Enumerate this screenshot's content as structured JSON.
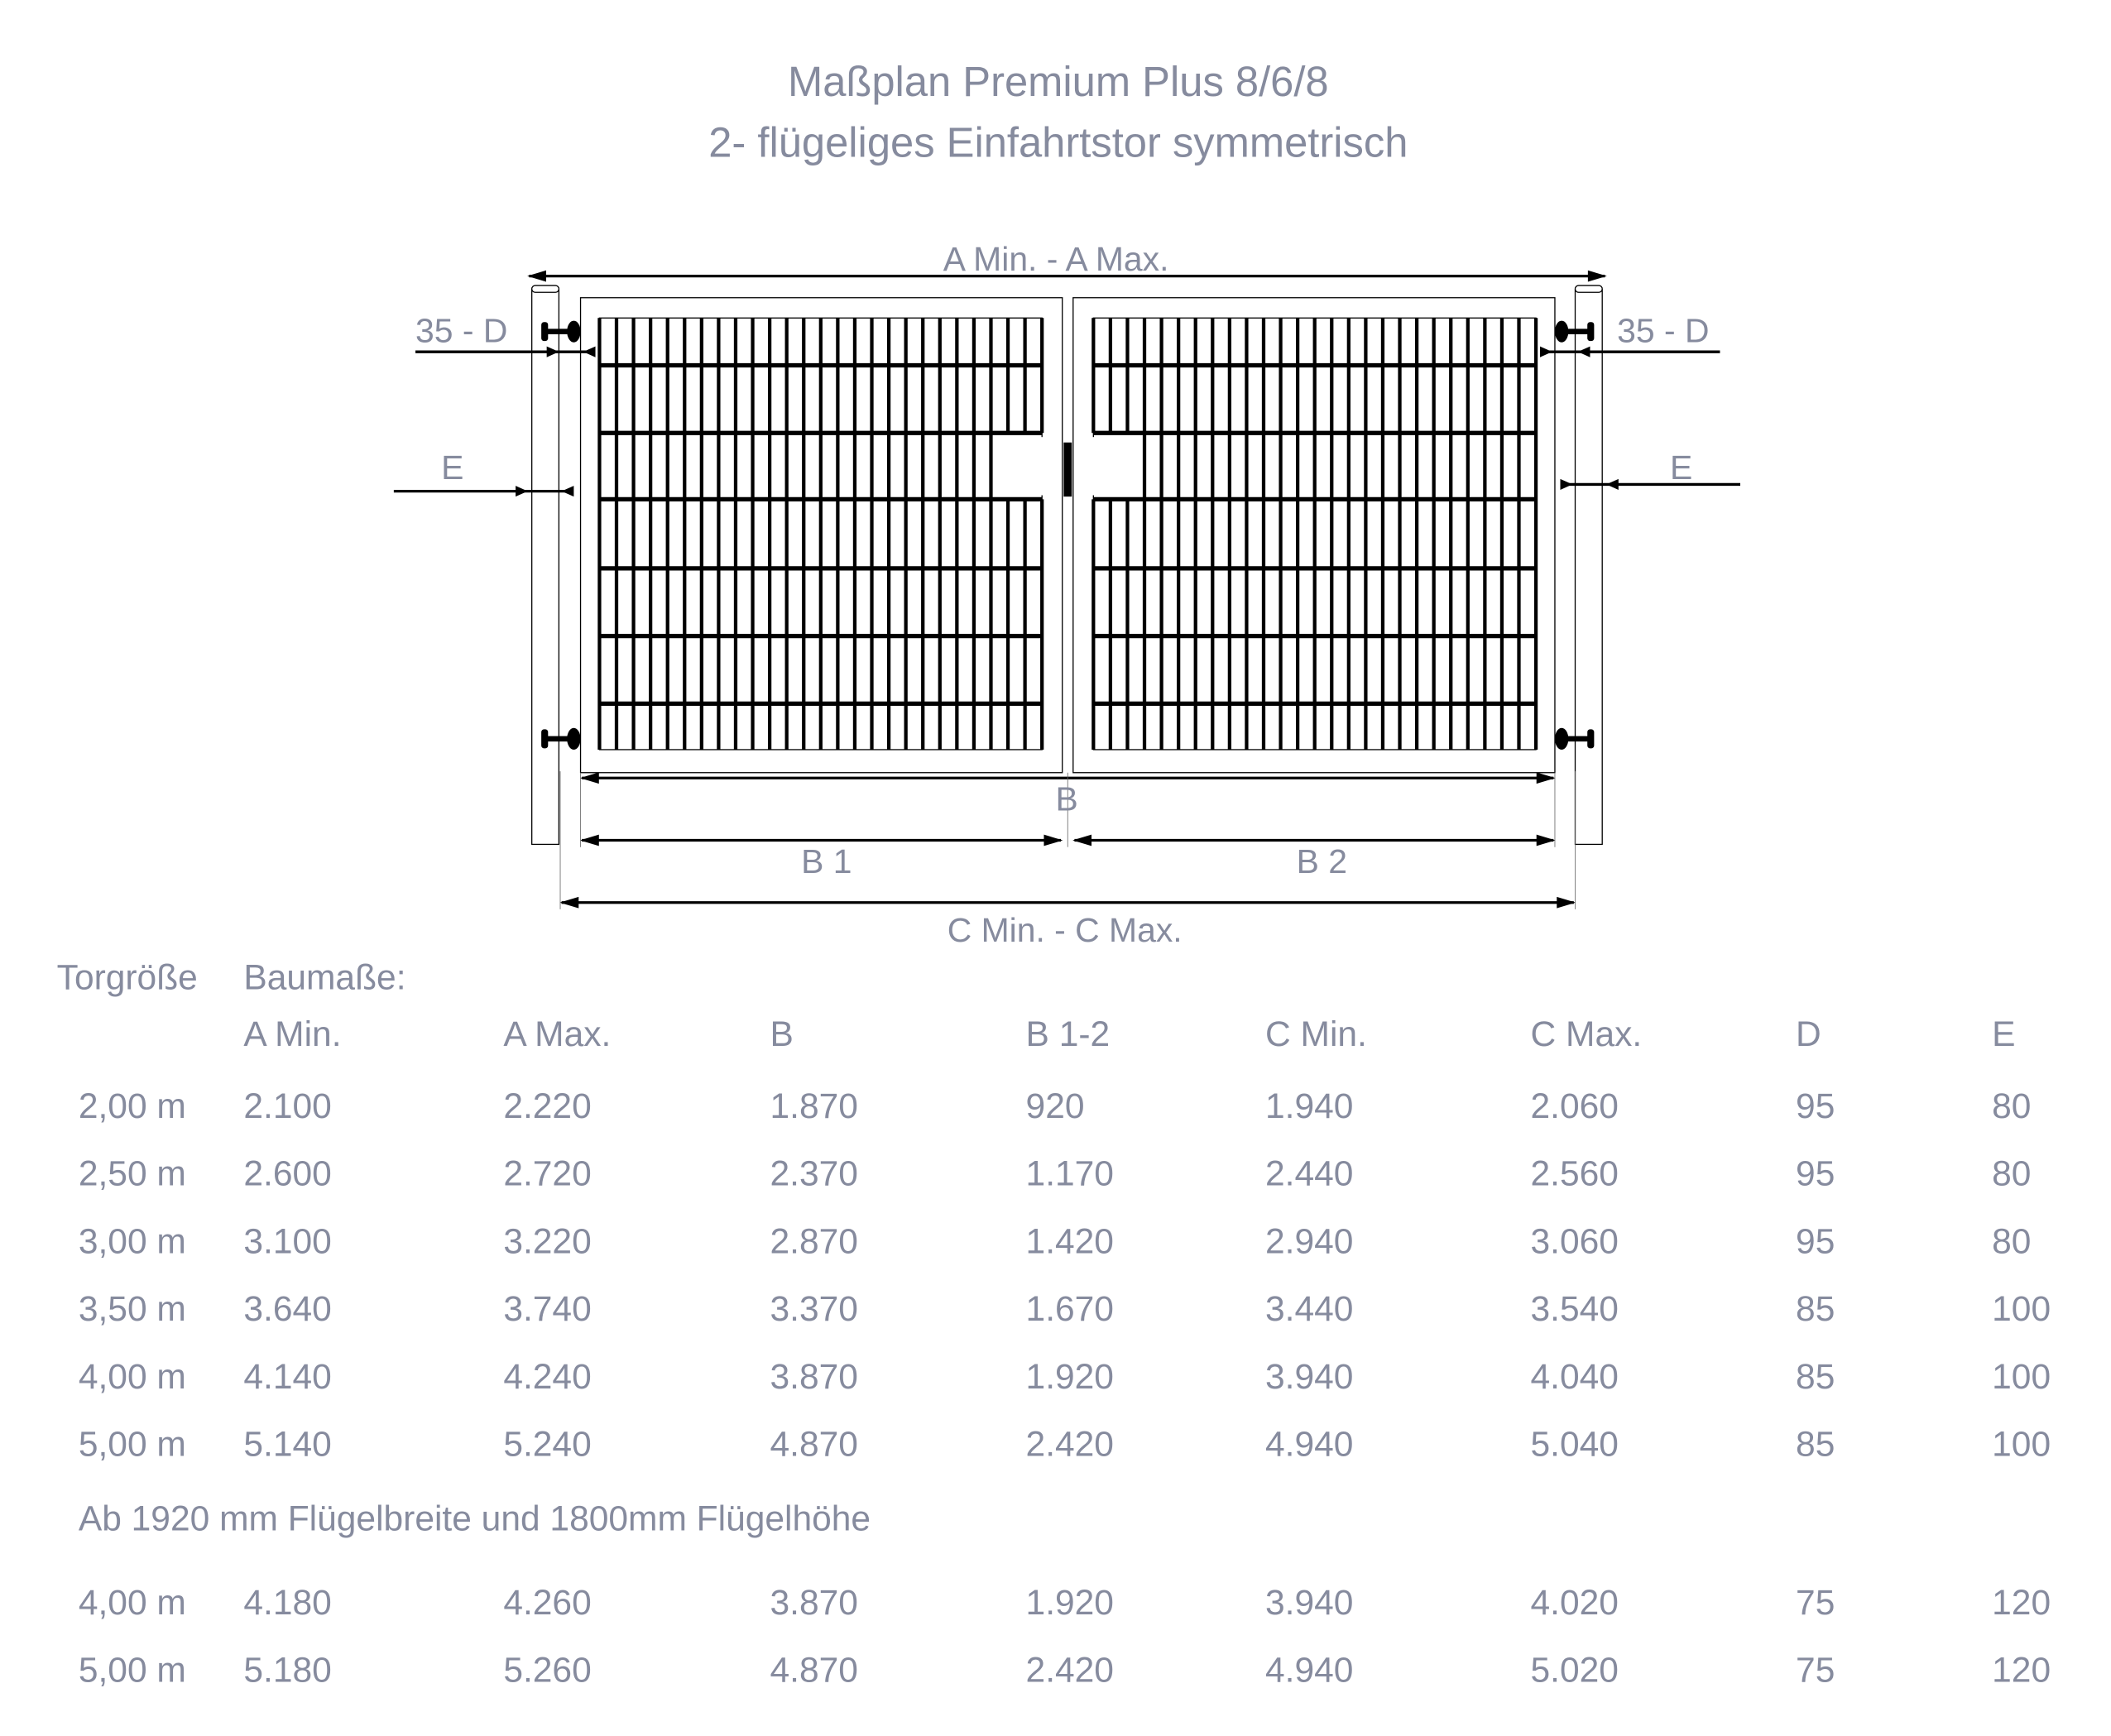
{
  "title": {
    "line1": "Maßplan Premium Plus 8/6/8",
    "line2": "2- flügeliges Einfahrtstor symmetrisch"
  },
  "drawing": {
    "a_label": "A Min. - A Max.",
    "d_label_left": "35 -  D",
    "d_label_right": "35 - D",
    "e_label_left": "E",
    "e_label_right": "E",
    "b_label": "B",
    "b1_label": "B 1",
    "b2_label": "B 2",
    "c_label": "C Min. - C Max.",
    "text_color": "#868b9e",
    "line_color": "#000000"
  },
  "table": {
    "col0_header": "Torgröße",
    "group_header": "Baumaße:",
    "columns": [
      "A Min.",
      "A Max.",
      "B",
      "B 1-2",
      "C Min.",
      "C Max.",
      "D",
      "E"
    ],
    "rows": [
      [
        "2,00 m",
        "2.100",
        "2.220",
        "1.870",
        "920",
        "1.940",
        "2.060",
        "95",
        "80"
      ],
      [
        "2,50 m",
        "2.600",
        "2.720",
        "2.370",
        "1.170",
        "2.440",
        "2.560",
        "95",
        "80"
      ],
      [
        "3,00 m",
        "3.100",
        "3.220",
        "2.870",
        "1.420",
        "2.940",
        "3.060",
        "95",
        "80"
      ],
      [
        "3,50 m",
        "3.640",
        "3.740",
        "3.370",
        "1.670",
        "3.440",
        "3.540",
        "85",
        "100"
      ],
      [
        "4,00 m",
        "4.140",
        "4.240",
        "3.870",
        "1.920",
        "3.940",
        "4.040",
        "85",
        "100"
      ],
      [
        "5,00 m",
        "5.140",
        "5.240",
        "4.870",
        "2.420",
        "4.940",
        "5.040",
        "85",
        "100"
      ]
    ],
    "note": "Ab 1920 mm Flügelbreite und 1800mm Flügelhöhe",
    "extra_rows": [
      [
        "4,00 m",
        "4.180",
        "4.260",
        "3.870",
        "1.920",
        "3.940",
        "4.020",
        "75",
        "120"
      ],
      [
        "5,00 m",
        "5.180",
        "5.260",
        "4.870",
        "2.420",
        "4.940",
        "5.020",
        "75",
        "120"
      ]
    ]
  }
}
